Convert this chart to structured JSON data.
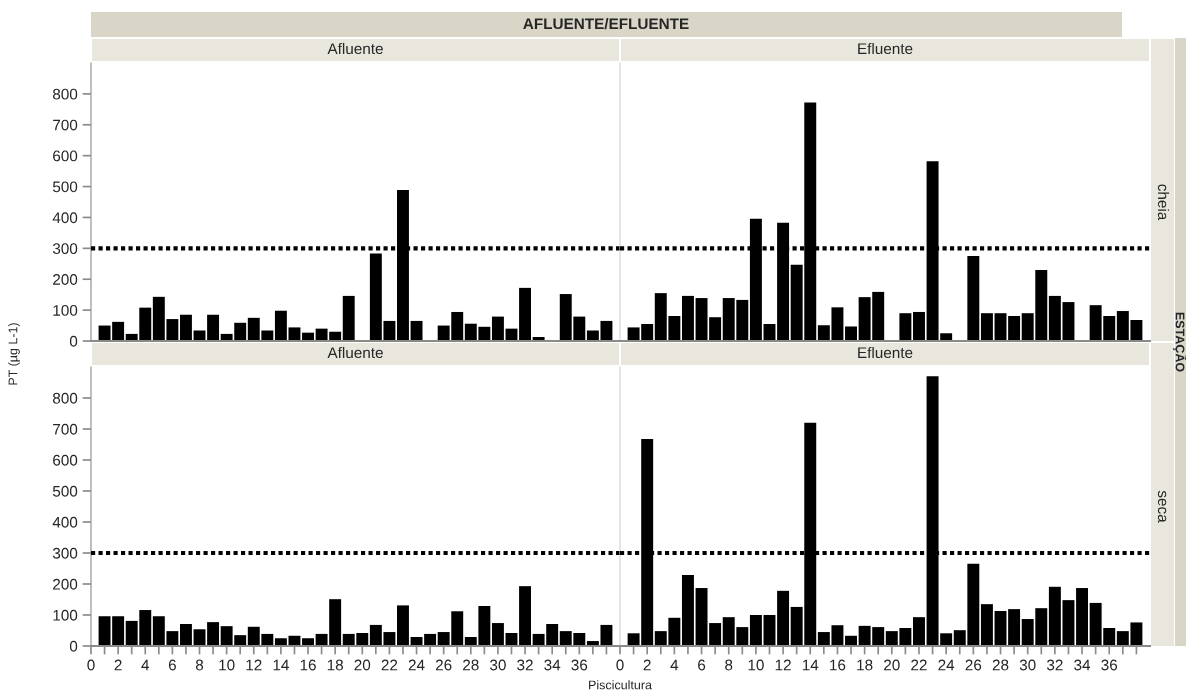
{
  "chart_data": [
    {
      "type": "bar",
      "title": "Afluente",
      "ylabel": "PT (µg L-1)",
      "annotations": [
        "AFLUENTE/EFLUENTE"
      ],
      "color": "#000000",
      "x": [
        1,
        2,
        3,
        4,
        5,
        6,
        7,
        8,
        9,
        10,
        11,
        12,
        13,
        14,
        15,
        16,
        17,
        18,
        19,
        20,
        21,
        22,
        23,
        24,
        25,
        26,
        27,
        28,
        29,
        30,
        31,
        32,
        33,
        34,
        35,
        36,
        37,
        38
      ],
      "values": [
        50,
        62,
        23,
        108,
        143,
        71,
        85,
        34,
        85,
        23,
        59,
        75,
        34,
        98,
        44,
        27,
        40,
        30,
        146,
        null,
        283,
        65,
        489,
        65,
        null,
        50,
        94,
        56,
        46,
        79,
        40,
        172,
        13,
        null,
        152,
        79,
        34,
        65
      ],
      "xlim": [
        0,
        39
      ],
      "ylim": [
        0,
        900
      ],
      "yticks": [
        0,
        100,
        200,
        300,
        400,
        500,
        600,
        700,
        800
      ],
      "ref_lines": [
        {
          "axis": "y",
          "value": 300,
          "color": "#000000",
          "line_style": "dotted"
        }
      ],
      "tick_labels": "y"
    },
    {
      "type": "bar",
      "title": "Efluente",
      "annotations": [
        "cheia",
        "ESTAÇÃO"
      ],
      "color": "#000000",
      "x": [
        1,
        2,
        3,
        4,
        5,
        6,
        7,
        8,
        9,
        10,
        11,
        12,
        13,
        14,
        15,
        16,
        17,
        18,
        19,
        20,
        21,
        22,
        23,
        24,
        25,
        26,
        27,
        28,
        29,
        30,
        31,
        32,
        33,
        34,
        35,
        36,
        37,
        38
      ],
      "values": [
        44,
        55,
        155,
        81,
        146,
        139,
        77,
        139,
        133,
        396,
        55,
        383,
        247,
        772,
        51,
        109,
        47,
        142,
        159,
        null,
        90,
        94,
        582,
        25,
        null,
        275,
        90,
        90,
        81,
        90,
        230,
        146,
        126,
        null,
        116,
        81,
        97,
        68
      ],
      "xlim": [
        0,
        39
      ],
      "ylim": [
        0,
        900
      ],
      "ref_lines": [
        {
          "axis": "y",
          "value": 300,
          "color": "#000000",
          "line_style": "dotted"
        }
      ],
      "tick_labels": false
    },
    {
      "type": "bar",
      "title": "Afluente",
      "xlabel": "Piscicultura",
      "color": "#000000",
      "x": [
        1,
        2,
        3,
        4,
        5,
        6,
        7,
        8,
        9,
        10,
        11,
        12,
        13,
        14,
        15,
        16,
        17,
        18,
        19,
        20,
        21,
        22,
        23,
        24,
        25,
        26,
        27,
        28,
        29,
        30,
        31,
        32,
        33,
        34,
        35,
        36,
        37,
        38
      ],
      "values": [
        96,
        96,
        81,
        116,
        96,
        48,
        71,
        54,
        77,
        64,
        35,
        62,
        39,
        25,
        33,
        25,
        39,
        151,
        39,
        42,
        68,
        45,
        131,
        29,
        39,
        45,
        112,
        29,
        129,
        74,
        42,
        193,
        39,
        71,
        48,
        42,
        16,
        68
      ],
      "xlim": [
        0,
        39
      ],
      "xticks": [
        0,
        {
          "value": 1,
          "label": null
        },
        2,
        {
          "value": 3,
          "label": null
        },
        4,
        {
          "value": 5,
          "label": null
        },
        6,
        {
          "value": 7,
          "label": null
        },
        8,
        {
          "value": 9,
          "label": null
        },
        10,
        {
          "value": 11,
          "label": null
        },
        12,
        {
          "value": 13,
          "label": null
        },
        14,
        {
          "value": 15,
          "label": null
        },
        16,
        {
          "value": 17,
          "label": null
        },
        18,
        {
          "value": 19,
          "label": null
        },
        20,
        {
          "value": 21,
          "label": null
        },
        22,
        {
          "value": 23,
          "label": null
        },
        24,
        {
          "value": 25,
          "label": null
        },
        26,
        {
          "value": 27,
          "label": null
        },
        28,
        {
          "value": 29,
          "label": null
        },
        30,
        {
          "value": 31,
          "label": null
        },
        32,
        {
          "value": 33,
          "label": null
        },
        34,
        {
          "value": 35,
          "label": null
        },
        36,
        {
          "value": 37,
          "label": null
        },
        {
          "value": 38,
          "label": null
        }
      ],
      "ylim": [
        0,
        900
      ],
      "yticks": [
        0,
        100,
        200,
        300,
        400,
        500,
        600,
        700,
        800
      ],
      "ref_lines": [
        {
          "axis": "y",
          "value": 300,
          "color": "#000000",
          "line_style": "dotted"
        }
      ]
    },
    {
      "type": "bar",
      "title": "Efluente",
      "annotations": [
        "seca"
      ],
      "color": "#000000",
      "x": [
        1,
        2,
        3,
        4,
        5,
        6,
        7,
        8,
        9,
        10,
        11,
        12,
        13,
        14,
        15,
        16,
        17,
        18,
        19,
        20,
        21,
        22,
        23,
        24,
        25,
        26,
        27,
        28,
        29,
        30,
        31,
        32,
        33,
        34,
        35,
        36,
        37,
        38
      ],
      "values": [
        41,
        668,
        48,
        91,
        229,
        187,
        74,
        93,
        61,
        100,
        100,
        178,
        126,
        720,
        45,
        67,
        33,
        65,
        61,
        48,
        58,
        93,
        870,
        41,
        51,
        265,
        135,
        113,
        119,
        87,
        122,
        191,
        148,
        187,
        139,
        58,
        48,
        76
      ],
      "xlim": [
        0,
        39
      ],
      "xticks": [
        0,
        {
          "value": 1,
          "label": null
        },
        2,
        {
          "value": 3,
          "label": null
        },
        4,
        {
          "value": 5,
          "label": null
        },
        6,
        {
          "value": 7,
          "label": null
        },
        8,
        {
          "value": 9,
          "label": null
        },
        10,
        {
          "value": 11,
          "label": null
        },
        12,
        {
          "value": 13,
          "label": null
        },
        14,
        {
          "value": 15,
          "label": null
        },
        16,
        {
          "value": 17,
          "label": null
        },
        18,
        {
          "value": 19,
          "label": null
        },
        20,
        {
          "value": 21,
          "label": null
        },
        22,
        {
          "value": 23,
          "label": null
        },
        24,
        {
          "value": 25,
          "label": null
        },
        26,
        {
          "value": 27,
          "label": null
        },
        28,
        {
          "value": 29,
          "label": null
        },
        30,
        {
          "value": 31,
          "label": null
        },
        32,
        {
          "value": 33,
          "label": null
        },
        34,
        {
          "value": 35,
          "label": null
        },
        36,
        {
          "value": 37,
          "label": null
        },
        {
          "value": 38,
          "label": null
        }
      ],
      "ylim": [
        0,
        900
      ],
      "ref_lines": [
        {
          "axis": "y",
          "value": 300,
          "color": "#000000",
          "line_style": "dotted"
        }
      ],
      "tick_labels": "x"
    }
  ]
}
